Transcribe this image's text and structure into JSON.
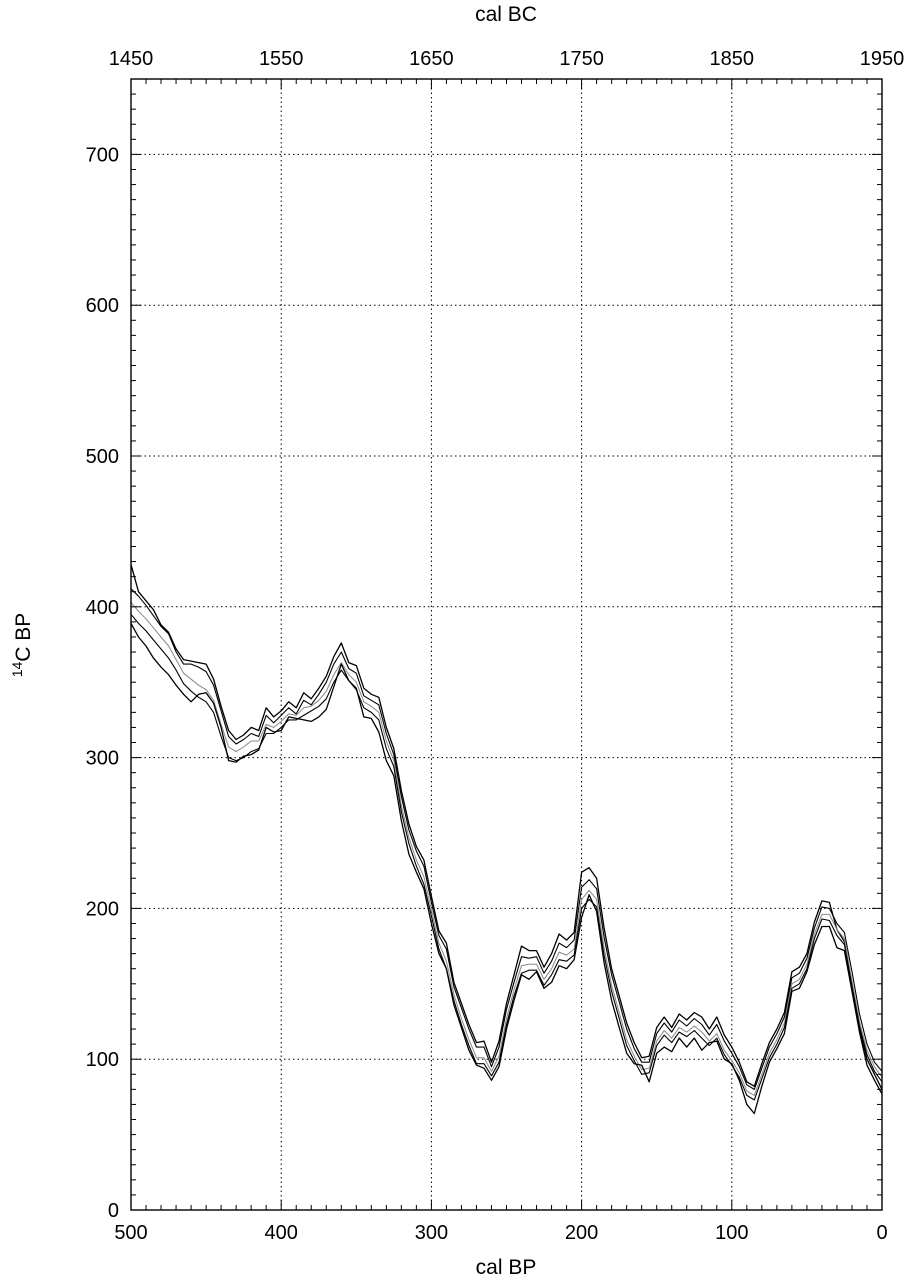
{
  "chart_data": {
    "type": "line",
    "title": "",
    "xlabel_bottom": "cal BP",
    "xlabel_top": "cal BC",
    "ylabel_super": "14",
    "ylabel_main": "C BP",
    "xlim": [
      500,
      0
    ],
    "ylim": [
      0,
      750
    ],
    "grid": true,
    "x_ticks_bottom": [
      "500",
      "400",
      "300",
      "200",
      "100",
      "0"
    ],
    "x_ticks_top": [
      "1450",
      "1550",
      "1650",
      "1750",
      "1850",
      "1950"
    ],
    "y_ticks": [
      "0",
      "100",
      "200",
      "300",
      "400",
      "500",
      "600",
      "700"
    ],
    "line_colors": {
      "bounds": "#000000",
      "mean": "#888888"
    },
    "series": [
      {
        "role": "outer-upper",
        "x": [
          500,
          495,
          490,
          485,
          480,
          475,
          470,
          465,
          460,
          455,
          450,
          445,
          440,
          435,
          430,
          425,
          420,
          415,
          410,
          405,
          400,
          395,
          390,
          385,
          380,
          375,
          370,
          365,
          360,
          355,
          350,
          345,
          340,
          335,
          330,
          325,
          320,
          315,
          310,
          305,
          300,
          295,
          290,
          285,
          280,
          275,
          270,
          265,
          260,
          255,
          250,
          245,
          240,
          235,
          230,
          225,
          220,
          215,
          210,
          205,
          200,
          195,
          190,
          185,
          180,
          175,
          170,
          165,
          160,
          155,
          150,
          145,
          140,
          135,
          130,
          125,
          120,
          115,
          110,
          105,
          100,
          95,
          90,
          85,
          80,
          75,
          70,
          65,
          60,
          55,
          50,
          45,
          40,
          35,
          30,
          25,
          20,
          15,
          10,
          5,
          0
        ],
        "y": [
          428,
          410,
          404,
          398,
          388,
          383,
          372,
          365,
          364,
          363,
          362,
          352,
          334,
          318,
          312,
          315,
          320,
          318,
          333,
          327,
          331,
          337,
          333,
          343,
          339,
          346,
          354,
          367,
          376,
          363,
          361,
          346,
          342,
          340,
          320,
          306,
          278,
          256,
          241,
          232,
          208,
          185,
          177,
          151,
          137,
          123,
          111,
          112,
          98,
          112,
          137,
          156,
          175,
          172,
          172,
          161,
          170,
          183,
          179,
          184,
          224,
          227,
          220,
          187,
          160,
          142,
          124,
          111,
          101,
          102,
          121,
          128,
          121,
          130,
          126,
          131,
          128,
          120,
          128,
          116,
          108,
          98,
          85,
          82,
          97,
          111,
          120,
          131,
          158,
          161,
          170,
          191,
          205,
          204,
          186,
          178,
          150,
          120,
          100,
          90,
          80
        ]
      },
      {
        "role": "inner-upper",
        "x": [
          500,
          495,
          490,
          485,
          480,
          475,
          470,
          465,
          460,
          455,
          450,
          445,
          440,
          435,
          430,
          425,
          420,
          415,
          410,
          405,
          400,
          395,
          390,
          385,
          380,
          375,
          370,
          365,
          360,
          355,
          350,
          345,
          340,
          335,
          330,
          325,
          320,
          315,
          310,
          305,
          300,
          295,
          290,
          285,
          280,
          275,
          270,
          265,
          260,
          255,
          250,
          245,
          240,
          235,
          230,
          225,
          220,
          215,
          210,
          205,
          200,
          195,
          190,
          185,
          180,
          175,
          170,
          165,
          160,
          155,
          150,
          145,
          140,
          135,
          130,
          125,
          120,
          115,
          110,
          105,
          100,
          95,
          90,
          85,
          80,
          75,
          70,
          65,
          60,
          55,
          50,
          45,
          40,
          35,
          30,
          25,
          20,
          15,
          10,
          5,
          0
        ],
        "y": [
          412,
          407,
          401,
          394,
          387,
          382,
          370,
          362,
          362,
          360,
          357,
          348,
          331,
          314,
          309,
          312,
          316,
          314,
          328,
          323,
          328,
          333,
          329,
          338,
          335,
          342,
          350,
          362,
          370,
          359,
          356,
          341,
          338,
          335,
          316,
          302,
          274,
          252,
          238,
          228,
          204,
          182,
          173,
          148,
          134,
          120,
          108,
          108,
          95,
          108,
          133,
          151,
          168,
          167,
          168,
          157,
          165,
          177,
          174,
          179,
          214,
          219,
          213,
          181,
          156,
          138,
          120,
          107,
          98,
          98,
          117,
          124,
          118,
          126,
          122,
          127,
          123,
          116,
          123,
          112,
          104,
          95,
          83,
          80,
          94,
          108,
          117,
          128,
          154,
          157,
          167,
          187,
          201,
          200,
          190,
          184,
          158,
          130,
          110,
          98,
          92
        ]
      },
      {
        "role": "mean",
        "x": [
          500,
          495,
          490,
          485,
          480,
          475,
          470,
          465,
          460,
          455,
          450,
          445,
          440,
          435,
          430,
          425,
          420,
          415,
          410,
          405,
          400,
          395,
          390,
          385,
          380,
          375,
          370,
          365,
          360,
          355,
          350,
          345,
          340,
          335,
          330,
          325,
          320,
          315,
          310,
          305,
          300,
          295,
          290,
          285,
          280,
          275,
          270,
          265,
          260,
          255,
          250,
          245,
          240,
          235,
          230,
          225,
          220,
          215,
          210,
          205,
          200,
          195,
          190,
          185,
          180,
          175,
          170,
          165,
          160,
          155,
          150,
          145,
          140,
          135,
          130,
          125,
          120,
          115,
          110,
          105,
          100,
          95,
          90,
          85,
          80,
          75,
          70,
          65,
          60,
          55,
          50,
          45,
          40,
          35,
          30,
          25,
          20,
          15,
          10,
          5,
          0
        ],
        "y": [
          403,
          397,
          392,
          386,
          380,
          374,
          365,
          356,
          352,
          348,
          345,
          338,
          322,
          307,
          304,
          307,
          311,
          311,
          322,
          320,
          324,
          329,
          328,
          333,
          334,
          338,
          344,
          355,
          363,
          355,
          350,
          337,
          334,
          330,
          311,
          298,
          268,
          247,
          232,
          221,
          199,
          177,
          165,
          143,
          127,
          113,
          101,
          101,
          92,
          102,
          127,
          146,
          162,
          163,
          163,
          153,
          160,
          171,
          169,
          173,
          206,
          212,
          206,
          174,
          149,
          131,
          113,
          102,
          93,
          94,
          112,
          119,
          114,
          121,
          118,
          122,
          118,
          112,
          117,
          106,
          99,
          91,
          79,
          76,
          90,
          104,
          113,
          124,
          150,
          153,
          163,
          183,
          196,
          196,
          186,
          180,
          152,
          125,
          106,
          95,
          88
        ]
      },
      {
        "role": "inner-lower",
        "x": [
          500,
          495,
          490,
          485,
          480,
          475,
          470,
          465,
          460,
          455,
          450,
          445,
          440,
          435,
          430,
          425,
          420,
          415,
          410,
          405,
          400,
          395,
          390,
          385,
          380,
          375,
          370,
          365,
          360,
          355,
          350,
          345,
          340,
          335,
          330,
          325,
          320,
          315,
          310,
          305,
          300,
          295,
          290,
          285,
          280,
          275,
          270,
          265,
          260,
          255,
          250,
          245,
          240,
          235,
          230,
          225,
          220,
          215,
          210,
          205,
          200,
          195,
          190,
          185,
          180,
          175,
          170,
          165,
          160,
          155,
          150,
          145,
          140,
          135,
          130,
          125,
          120,
          115,
          110,
          105,
          100,
          95,
          90,
          85,
          80,
          75,
          70,
          65,
          60,
          55,
          50,
          45,
          40,
          35,
          30,
          25,
          20,
          15,
          10,
          5,
          0
        ],
        "y": [
          395,
          389,
          384,
          378,
          372,
          366,
          358,
          349,
          344,
          340,
          337,
          330,
          314,
          300,
          298,
          300,
          304,
          306,
          316,
          316,
          320,
          325,
          325,
          328,
          331,
          334,
          339,
          350,
          358,
          351,
          345,
          333,
          330,
          325,
          306,
          294,
          264,
          243,
          228,
          216,
          195,
          173,
          160,
          139,
          123,
          109,
          97,
          97,
          89,
          98,
          123,
          142,
          157,
          159,
          159,
          149,
          156,
          166,
          165,
          169,
          200,
          206,
          201,
          169,
          145,
          127,
          109,
          99,
          90,
          91,
          109,
          116,
          111,
          118,
          115,
          119,
          114,
          109,
          114,
          103,
          96,
          88,
          76,
          73,
          87,
          101,
          110,
          121,
          147,
          150,
          160,
          180,
          193,
          192,
          182,
          176,
          148,
          122,
          103,
          92,
          85
        ]
      },
      {
        "role": "outer-lower",
        "x": [
          500,
          495,
          490,
          485,
          480,
          475,
          470,
          465,
          460,
          455,
          450,
          445,
          440,
          435,
          430,
          425,
          420,
          415,
          410,
          405,
          400,
          395,
          390,
          385,
          380,
          375,
          370,
          365,
          360,
          355,
          350,
          345,
          340,
          335,
          330,
          325,
          320,
          315,
          310,
          305,
          300,
          295,
          290,
          285,
          280,
          275,
          270,
          265,
          260,
          255,
          250,
          245,
          240,
          235,
          230,
          225,
          220,
          215,
          210,
          205,
          200,
          195,
          190,
          185,
          180,
          175,
          170,
          165,
          160,
          155,
          150,
          145,
          140,
          135,
          130,
          125,
          120,
          115,
          110,
          105,
          100,
          95,
          90,
          85,
          80,
          75,
          70,
          65,
          60,
          55,
          50,
          45,
          40,
          35,
          30,
          25,
          20,
          15,
          10,
          5,
          0
        ],
        "y": [
          389,
          380,
          374,
          366,
          360,
          355,
          348,
          342,
          337,
          342,
          343,
          336,
          320,
          298,
          297,
          301,
          302,
          305,
          320,
          317,
          318,
          327,
          326,
          325,
          324,
          327,
          332,
          347,
          362,
          351,
          346,
          327,
          326,
          317,
          298,
          288,
          258,
          236,
          224,
          213,
          190,
          170,
          160,
          136,
          121,
          106,
          96,
          94,
          86,
          95,
          120,
          139,
          156,
          153,
          158,
          147,
          151,
          162,
          160,
          166,
          194,
          209,
          198,
          164,
          139,
          121,
          104,
          97,
          96,
          85,
          104,
          108,
          105,
          114,
          108,
          114,
          106,
          111,
          112,
          100,
          97,
          86,
          70,
          64,
          82,
          98,
          107,
          117,
          145,
          147,
          158,
          176,
          188,
          188,
          174,
          172,
          145,
          118,
          96,
          86,
          77
        ]
      }
    ]
  }
}
